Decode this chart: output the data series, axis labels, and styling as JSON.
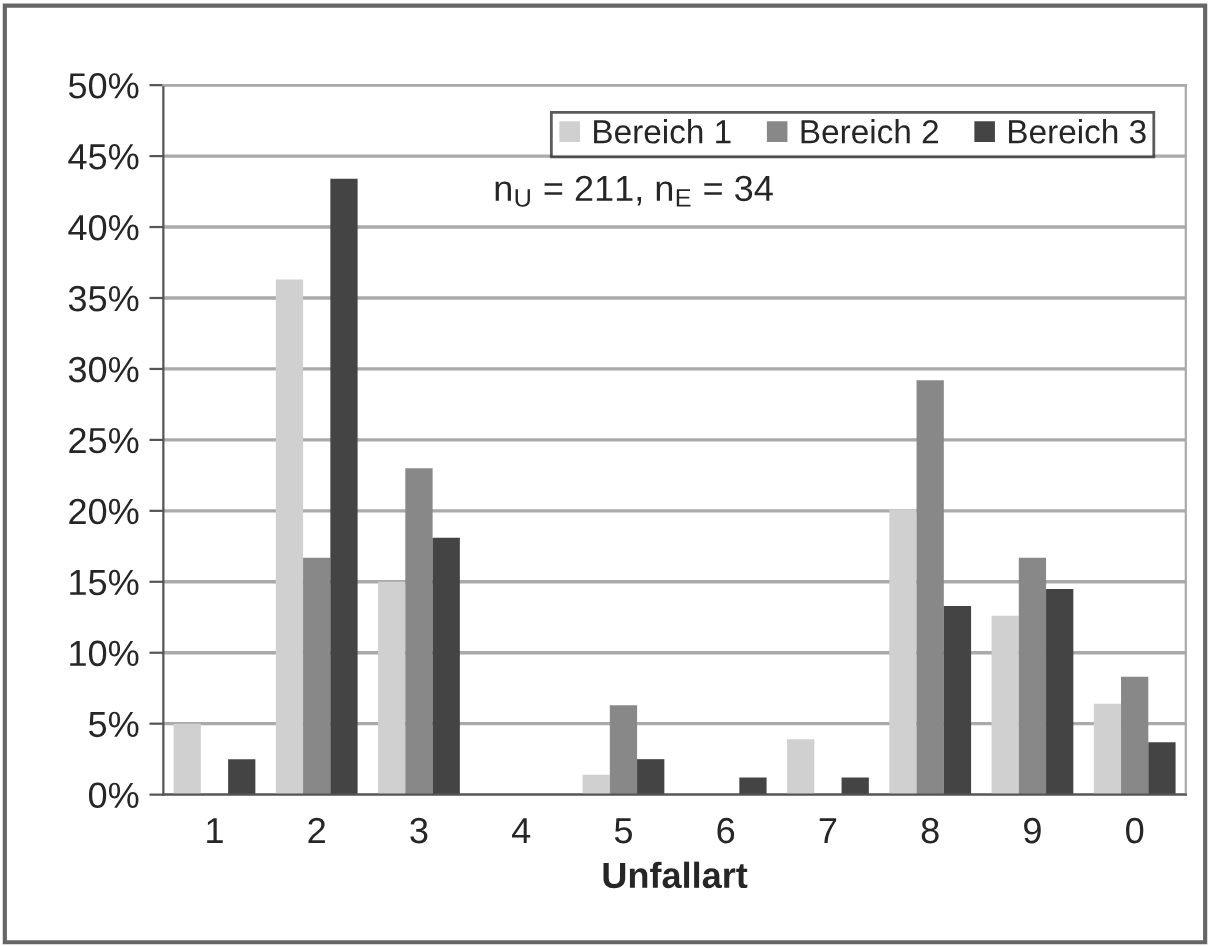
{
  "chart_data": {
    "type": "bar",
    "xlabel": "Unfallart",
    "categories": [
      "1",
      "2",
      "3",
      "4",
      "5",
      "6",
      "7",
      "8",
      "9",
      "0"
    ],
    "series": [
      {
        "name": "Bereich 1",
        "color": "#d0d0d0",
        "values": [
          5.0,
          36.3,
          15.0,
          0,
          1.4,
          0,
          3.9,
          20.1,
          12.6,
          6.4
        ]
      },
      {
        "name": "Bereich 2",
        "color": "#888888",
        "values": [
          0,
          16.7,
          23.0,
          0,
          6.3,
          0,
          0,
          29.2,
          16.7,
          8.3
        ]
      },
      {
        "name": "Bereich 3",
        "color": "#444444",
        "values": [
          2.5,
          43.4,
          18.1,
          0,
          2.5,
          1.2,
          1.2,
          13.3,
          14.5,
          3.7
        ]
      }
    ],
    "ylim": [
      0,
      50
    ],
    "yticks": [
      {
        "value": 0,
        "label": "0%"
      },
      {
        "value": 5,
        "label": "5%"
      },
      {
        "value": 10,
        "label": "10%"
      },
      {
        "value": 15,
        "label": "15%"
      },
      {
        "value": 20,
        "label": "20%"
      },
      {
        "value": 25,
        "label": "25%"
      },
      {
        "value": 30,
        "label": "30%"
      },
      {
        "value": 35,
        "label": "35%"
      },
      {
        "value": 40,
        "label": "40%"
      },
      {
        "value": 45,
        "label": "45%"
      },
      {
        "value": 50,
        "label": "50%"
      }
    ],
    "grid": "y",
    "legend": "top right",
    "annotations": [
      "n$_{U}$ = 211, n$_{E}$ = 34"
    ]
  }
}
